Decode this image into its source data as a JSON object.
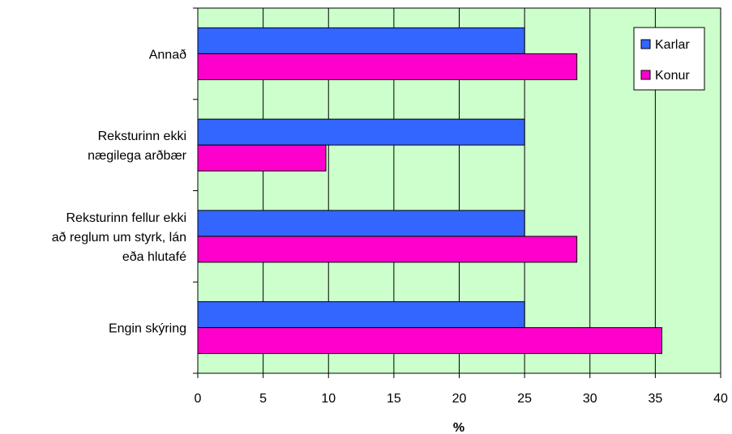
{
  "chart_data": {
    "type": "bar",
    "orientation": "horizontal",
    "categories": [
      [
        "Annað"
      ],
      [
        "Reksturinn ekki",
        "nægilega arðbær"
      ],
      [
        "Reksturinn fellur ekki",
        "að reglum um styrk, lán",
        "eða hlutafé"
      ],
      [
        "Engin skýring"
      ]
    ],
    "series": [
      {
        "name": "Karlar",
        "color": "#3366ff",
        "values": [
          25,
          25,
          25,
          25
        ]
      },
      {
        "name": "Konur",
        "color": "#ff00cc",
        "values": [
          29,
          9.8,
          29,
          35.5
        ]
      }
    ],
    "xlabel": "%",
    "xlim": [
      0,
      40
    ],
    "xticks": [
      "0",
      "5",
      "10",
      "15",
      "20",
      "25",
      "30",
      "35",
      "40"
    ],
    "plot_background": "#ccffcc",
    "grid": true,
    "legend_position": "top-right"
  }
}
